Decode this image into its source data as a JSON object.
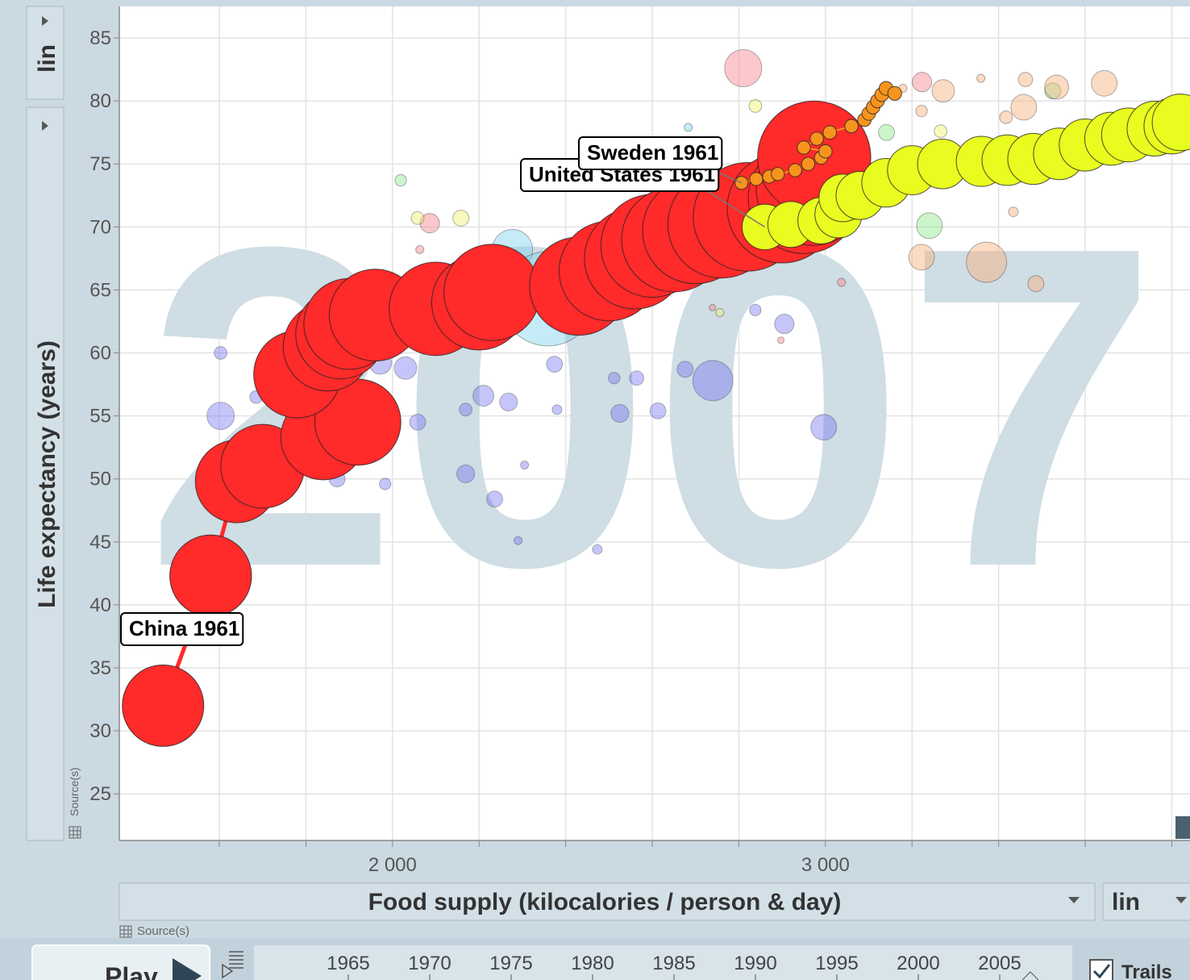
{
  "chart_data": {
    "type": "bubble",
    "watermark": "2007",
    "ylabel": "Life expectancy (years)",
    "xlabel": "Food supply (kilocalories / person & day)",
    "xlim": [
      1369,
      3842
    ],
    "ylim": [
      21.3,
      87.5
    ],
    "xticks": [
      {
        "value": 2000,
        "label": "2 000"
      },
      {
        "value": 3000,
        "label": "3 000"
      }
    ],
    "xminor": [
      1600,
      1800,
      2000,
      2200,
      2400,
      2600,
      2800,
      3000,
      3200,
      3400,
      3600,
      3800
    ],
    "yticks": [
      25,
      30,
      35,
      40,
      45,
      50,
      55,
      60,
      65,
      70,
      75,
      80,
      85
    ],
    "grid": true,
    "series": [
      {
        "color": "#6f6ff0",
        "opacity": 0.4,
        "x": [
          1603,
          1603,
          1685,
          1872,
          1983,
          1972,
          2030,
          2058,
          2169,
          2236,
          2290,
          2305,
          2210,
          2169,
          2268,
          2374,
          2380,
          2473,
          2512,
          2525,
          2564,
          2613,
          2676,
          2740,
          2838,
          2905,
          2996,
          2088
        ],
        "values": [
          60,
          55,
          56.5,
          50,
          49.6,
          59.2,
          58.8,
          54.5,
          50.4,
          48.4,
          45.1,
          51.1,
          56.6,
          55.5,
          56.1,
          59.1,
          55.5,
          44.4,
          58,
          55.2,
          58,
          55.4,
          58.7,
          57.8,
          63.4,
          62.3,
          54.1,
          60.6
        ],
        "sizes": [
          7,
          57,
          7,
          14,
          5,
          35,
          35,
          14,
          19,
          14,
          1.2,
          1.2,
          29,
          7,
          19,
          14,
          2.6,
          2.6,
          5,
          19,
          10,
          14,
          14,
          141,
          5,
          24,
          49,
          10
        ]
      },
      {
        "color": "#7fd3ea",
        "opacity": 0.45,
        "x": [
          2277,
          2359,
          2683
        ],
        "values": [
          68.2,
          64.3,
          77.9
        ],
        "sizes": [
          141,
          900,
          1.2
        ]
      },
      {
        "color": "#f7868d",
        "opacity": 0.45,
        "x": [
          2810,
          2086,
          3223,
          3037,
          2897,
          2739,
          2063
        ],
        "values": [
          82.6,
          70.3,
          81.5,
          65.6,
          61,
          63.6,
          68.2
        ],
        "sizes": [
          117,
          24,
          24,
          1.2,
          0.3,
          0.3,
          1.2
        ]
      },
      {
        "color": "#eef56a",
        "opacity": 0.45,
        "x": [
          2158,
          2838,
          2058,
          2756,
          3266
        ],
        "values": [
          70.7,
          79.6,
          70.7,
          63.2,
          77.6
        ],
        "sizes": [
          14,
          7,
          7,
          1.2,
          7
        ]
      },
      {
        "color": "#8fe88f",
        "opacity": 0.45,
        "x": [
          2019,
          3240,
          3141,
          3525
        ],
        "values": [
          73.7,
          70.1,
          77.5,
          80.8
        ],
        "sizes": [
          5,
          49,
          14,
          14
        ]
      },
      {
        "color": "#f8b07a",
        "opacity": 0.45,
        "x": [
          3372,
          3222,
          3486,
          3272,
          3458,
          3644,
          3534,
          3462,
          3359,
          3222,
          3434,
          3179,
          3417
        ],
        "values": [
          67.2,
          67.6,
          65.5,
          80.8,
          79.5,
          81.4,
          81.1,
          81.7,
          81.8,
          79.2,
          71.2,
          81,
          78.7
        ],
        "sizes": [
          141,
          49,
          14,
          35,
          49,
          49,
          41,
          10,
          1.2,
          5,
          2.6,
          1.2,
          7
        ]
      },
      {
        "label": "China 1961",
        "color": "#ff2a2a",
        "opacity": 1,
        "trail": true,
        "x": [
          1470,
          1580,
          1640,
          1700,
          1840,
          1920,
          1780,
          1850,
          1880,
          1900,
          1960,
          2100,
          2200,
          2230,
          2430,
          2500,
          2560,
          2600,
          2650,
          2700,
          2760,
          2820,
          2900,
          2950,
          2970,
          2974
        ],
        "values": [
          32,
          42.3,
          49.8,
          51,
          53.3,
          54.5,
          58.3,
          60.5,
          61.5,
          62.3,
          63,
          63.5,
          64,
          64.8,
          65.3,
          66.5,
          67.5,
          68.5,
          69,
          69.7,
          70.2,
          70.8,
          71.5,
          72.3,
          73,
          75.5
        ],
        "sizes": [
          660,
          665,
          680,
          700,
          720,
          740,
          760,
          790,
          810,
          830,
          850,
          880,
          910,
          940,
          980,
          1010,
          1040,
          1080,
          1120,
          1150,
          1180,
          1210,
          1240,
          1270,
          1300,
          1320
        ]
      },
      {
        "label": "Sweden 1961",
        "color": "#f7941d",
        "opacity": 1,
        "trail": true,
        "x": [
          2806,
          2840,
          2870,
          2890,
          2930,
          2960,
          2990,
          3000,
          2950,
          2980,
          3010,
          3060,
          3090,
          3100,
          3110,
          3120,
          3130,
          3140,
          3160
        ],
        "values": [
          73.5,
          73.8,
          74,
          74.2,
          74.5,
          75,
          75.5,
          76,
          76.3,
          77,
          77.5,
          78,
          78.5,
          79,
          79.5,
          80,
          80.5,
          81,
          80.6
        ],
        "sizes": [
          7.5,
          7.5,
          7.6,
          7.7,
          7.8,
          7.9,
          8,
          8.1,
          8.1,
          8.2,
          8.3,
          8.3,
          8.4,
          8.5,
          8.6,
          8.7,
          8.8,
          8.9,
          9.1
        ]
      },
      {
        "label": "United States 1961",
        "color": "#e8fc1f",
        "opacity": 1,
        "trail": true,
        "x": [
          2860,
          2920,
          2990,
          3030,
          3040,
          3080,
          3140,
          3200,
          3270,
          3360,
          3420,
          3480,
          3540,
          3600,
          3660,
          3700,
          3760,
          3800,
          3820
        ],
        "values": [
          70,
          70.2,
          70.5,
          71,
          72.3,
          72.5,
          73.5,
          74.5,
          75,
          75.2,
          75.3,
          75.4,
          75.8,
          76.5,
          77,
          77.3,
          77.8,
          78,
          78.3
        ],
        "sizes": [
          186,
          190,
          195,
          200,
          205,
          210,
          215,
          220,
          225,
          230,
          235,
          240,
          245,
          250,
          260,
          270,
          280,
          290,
          300
        ]
      }
    ]
  },
  "ui": {
    "y_scale": "lin",
    "x_scale": "lin",
    "y_source": "Source(s)",
    "x_source": "Source(s)",
    "play": "Play",
    "trails": "Trails",
    "timeline": [
      1965,
      1970,
      1975,
      1980,
      1985,
      1990,
      1995,
      2000,
      2005
    ]
  }
}
